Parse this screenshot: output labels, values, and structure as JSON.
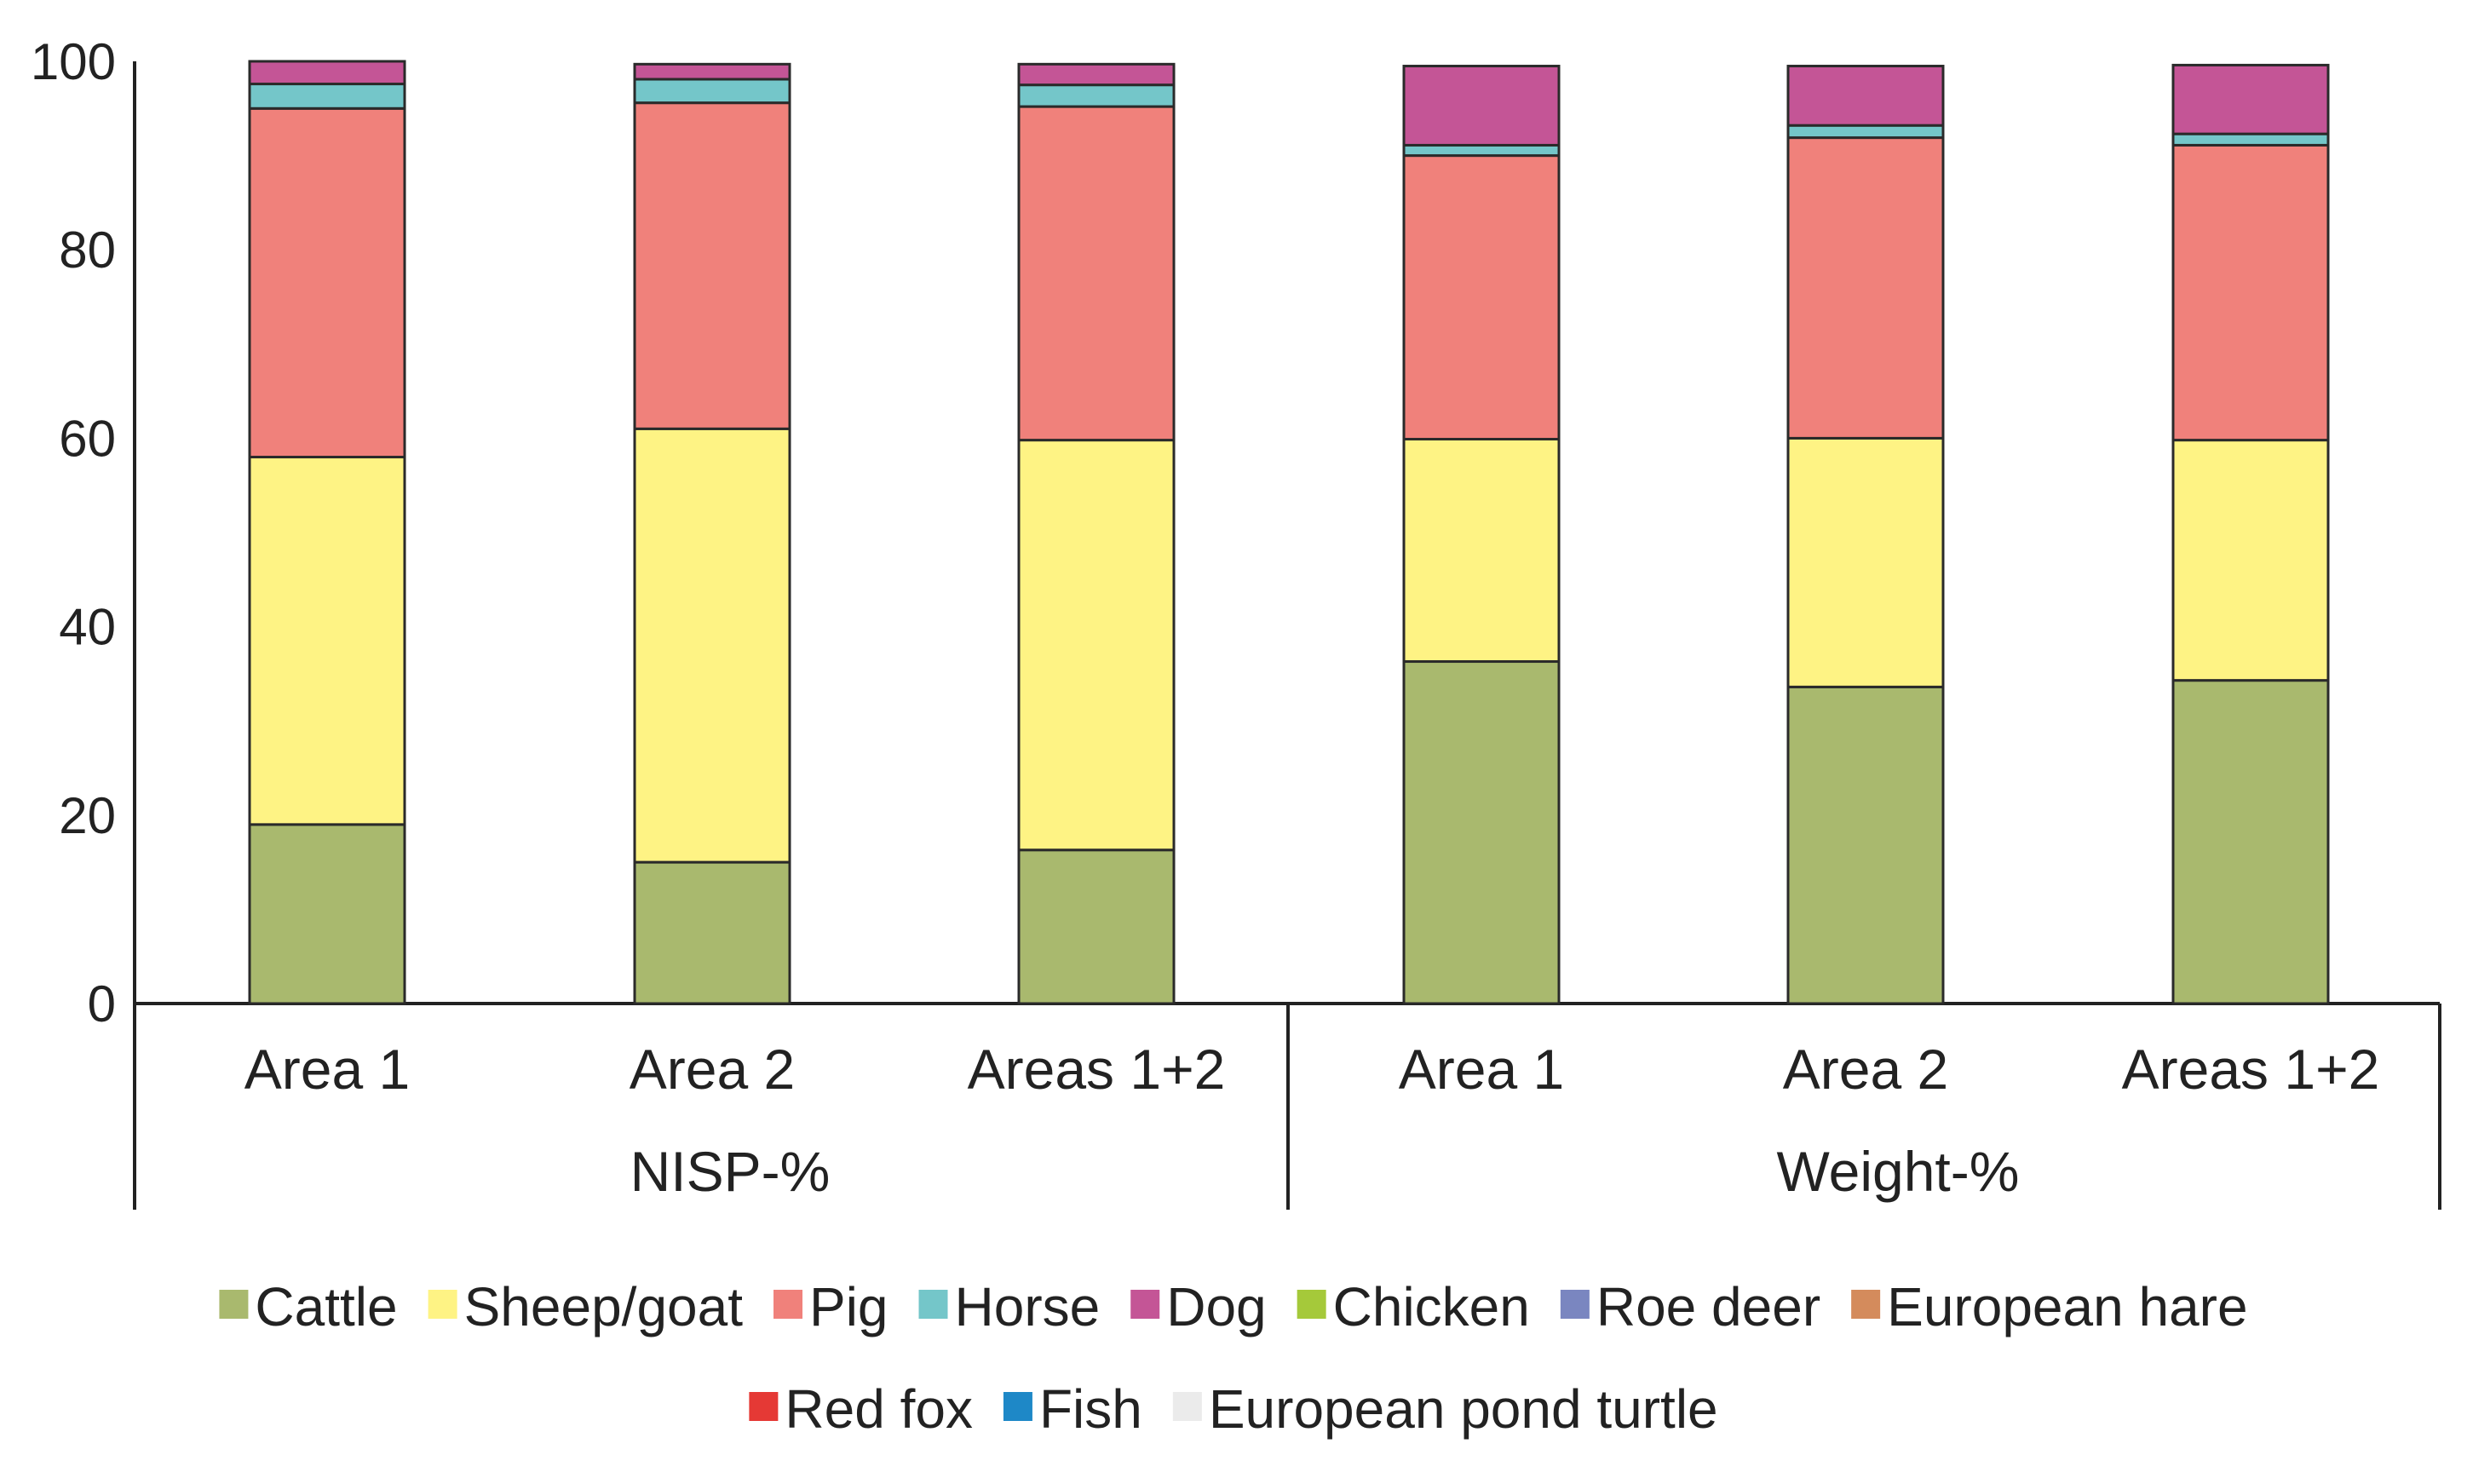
{
  "chart_data": {
    "type": "bar",
    "stacked": true,
    "title": "",
    "xlabel": "",
    "ylabel": "",
    "ylim": [
      0,
      100
    ],
    "yticks": [
      0,
      20,
      40,
      60,
      80,
      100
    ],
    "groups": [
      {
        "label": "NISP-%",
        "categories": [
          "Area 1",
          "Area 2",
          "Areas 1+2"
        ]
      },
      {
        "label": "Weight-%",
        "categories": [
          "Area 1",
          "Area 2",
          "Areas 1+2"
        ]
      }
    ],
    "categories": [
      "Area 1",
      "Area 2",
      "Areas 1+2",
      "Area 1",
      "Area 2",
      "Areas 1+2"
    ],
    "series": [
      {
        "name": "Cattle",
        "color": "#a9b96e",
        "values": [
          19,
          15,
          16.3,
          36.3,
          33.6,
          34.3
        ]
      },
      {
        "name": "Sheep/goat",
        "color": "#fef384",
        "values": [
          39,
          46,
          43.5,
          23.6,
          26.4,
          25.5
        ]
      },
      {
        "name": "Pig",
        "color": "#f0817b",
        "values": [
          37,
          34.6,
          35.4,
          30.1,
          31.9,
          31.3
        ]
      },
      {
        "name": "Horse",
        "color": "#74c6c9",
        "values": [
          2.6,
          2.5,
          2.3,
          1.1,
          1.3,
          1.2
        ]
      },
      {
        "name": "Dog",
        "color": "#c45596",
        "values": [
          2.4,
          1.6,
          2.2,
          8.4,
          6.3,
          7.3
        ]
      },
      {
        "name": "Chicken",
        "color": "#a5c93a",
        "values": [
          0,
          0,
          0,
          0,
          0,
          0
        ]
      },
      {
        "name": "Roe deer",
        "color": "#7a86c0",
        "values": [
          0,
          0,
          0,
          0,
          0,
          0
        ]
      },
      {
        "name": "European hare",
        "color": "#d48b5c",
        "values": [
          0,
          0,
          0,
          0,
          0,
          0
        ]
      },
      {
        "name": "Red fox",
        "color": "#e53935",
        "values": [
          0,
          0,
          0,
          0,
          0,
          0
        ]
      },
      {
        "name": "Fish",
        "color": "#1e88c7",
        "values": [
          0,
          0,
          0,
          0,
          0,
          0
        ]
      },
      {
        "name": "European pond turtle",
        "color": "#ebebeb",
        "values": [
          0,
          0,
          0,
          0,
          0,
          0
        ]
      }
    ],
    "legend_position": "bottom"
  }
}
